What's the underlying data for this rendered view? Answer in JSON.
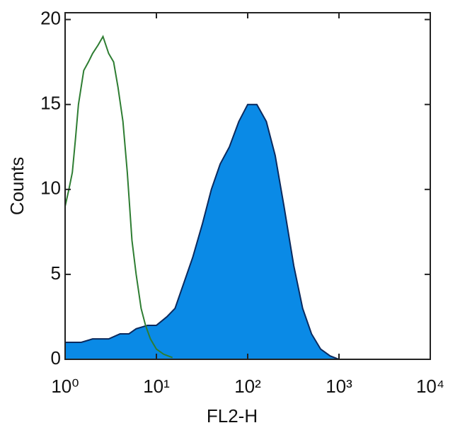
{
  "chart_data": {
    "type": "histogram-overlay",
    "xlabel": "FL2-H",
    "ylabel": "Counts",
    "xscale": "log",
    "xlim": [
      1,
      10000
    ],
    "ylim": [
      0,
      20.4
    ],
    "xticks": [
      {
        "value": 1,
        "label": "10⁰"
      },
      {
        "value": 10,
        "label": "10¹"
      },
      {
        "value": 100,
        "label": "10²"
      },
      {
        "value": 1000,
        "label": "10³"
      },
      {
        "value": 10000,
        "label": "10⁴"
      }
    ],
    "yticks": [
      0,
      5,
      10,
      15,
      20
    ],
    "series": [
      {
        "style": "filled",
        "color": "#0a8ae6",
        "edge": "#0b2a5e",
        "x": [
          1,
          1.5,
          2,
          3,
          4,
          5,
          6,
          8,
          10,
          13,
          16,
          20,
          25,
          32,
          40,
          50,
          63,
          80,
          100,
          126,
          160,
          200,
          250,
          320,
          400,
          500,
          630,
          800,
          1000
        ],
        "values": [
          1,
          1,
          1.2,
          1.2,
          1.5,
          1.5,
          1.8,
          2,
          2,
          2.5,
          3,
          4.5,
          6,
          8,
          10,
          11.5,
          12.5,
          14,
          15,
          15,
          14,
          12,
          9,
          5.5,
          3,
          1.5,
          0.6,
          0.2,
          0
        ]
      },
      {
        "style": "line",
        "color": "#2e7d32",
        "x": [
          1,
          1.1,
          1.2,
          1.3,
          1.4,
          1.6,
          1.8,
          2,
          2.3,
          2.6,
          3,
          3.4,
          3.8,
          4.3,
          4.8,
          5.4,
          6,
          6.8,
          7.6,
          8.6,
          10,
          12,
          15
        ],
        "values": [
          9,
          10,
          11,
          13,
          15,
          17,
          17.5,
          18,
          18.5,
          19,
          18,
          17.5,
          16,
          14,
          11,
          7,
          5,
          3,
          2,
          1.2,
          0.6,
          0.3,
          0.1
        ]
      }
    ]
  }
}
